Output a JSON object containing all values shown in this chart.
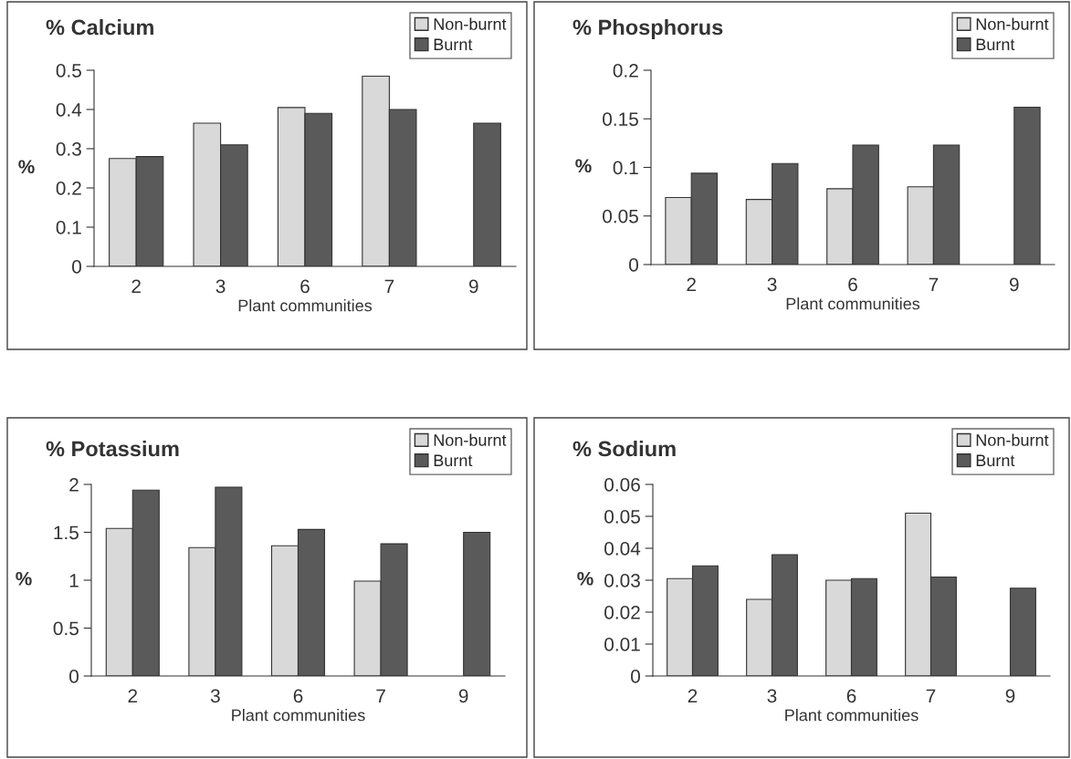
{
  "chart_data": [
    {
      "type": "bar",
      "title": "% Calcium",
      "xlabel": "Plant communities",
      "ylabel": "%",
      "categories": [
        "2",
        "3",
        "6",
        "7",
        "9"
      ],
      "series": [
        {
          "name": "Non-burnt",
          "color": "#d9d9d9",
          "values": [
            0.275,
            0.365,
            0.405,
            0.485,
            null
          ]
        },
        {
          "name": "Burnt",
          "color": "#5a5a5a",
          "values": [
            0.28,
            0.31,
            0.39,
            0.4,
            0.365
          ]
        }
      ],
      "ylim": [
        0,
        0.5
      ],
      "yticks": [
        0,
        0.1,
        0.2,
        0.3,
        0.4,
        0.5
      ],
      "grid": false,
      "legend": "top right"
    },
    {
      "type": "bar",
      "title": "% Phosphorus",
      "xlabel": "Plant communities",
      "ylabel": "%",
      "categories": [
        "2",
        "3",
        "6",
        "7",
        "9"
      ],
      "series": [
        {
          "name": "Non-burnt",
          "color": "#d9d9d9",
          "values": [
            0.069,
            0.067,
            0.078,
            0.08,
            null
          ]
        },
        {
          "name": "Burnt",
          "color": "#5a5a5a",
          "values": [
            0.094,
            0.104,
            0.123,
            0.123,
            0.162
          ]
        }
      ],
      "ylim": [
        0,
        0.2
      ],
      "yticks": [
        0,
        0.05,
        0.1,
        0.15,
        0.2
      ],
      "grid": false,
      "legend": "top right"
    },
    {
      "type": "bar",
      "title": "% Potassium",
      "xlabel": "Plant communities",
      "ylabel": "%",
      "categories": [
        "2",
        "3",
        "6",
        "7",
        "9"
      ],
      "series": [
        {
          "name": "Non-burnt",
          "color": "#d9d9d9",
          "values": [
            1.54,
            1.34,
            1.36,
            0.99,
            null
          ]
        },
        {
          "name": "Burnt",
          "color": "#5a5a5a",
          "values": [
            1.94,
            1.97,
            1.53,
            1.38,
            1.5
          ]
        }
      ],
      "ylim": [
        0,
        2
      ],
      "yticks": [
        0,
        0.5,
        1,
        1.5,
        2
      ],
      "grid": false,
      "legend": "top right"
    },
    {
      "type": "bar",
      "title": "% Sodium",
      "xlabel": "Plant communities",
      "ylabel": "%",
      "categories": [
        "2",
        "3",
        "6",
        "7",
        "9"
      ],
      "series": [
        {
          "name": "Non-burnt",
          "color": "#d9d9d9",
          "values": [
            0.0305,
            0.024,
            0.03,
            0.051,
            null
          ]
        },
        {
          "name": "Burnt",
          "color": "#5a5a5a",
          "values": [
            0.0345,
            0.038,
            0.0305,
            0.031,
            0.0275
          ]
        }
      ],
      "ylim": [
        0,
        0.06
      ],
      "yticks": [
        0,
        0.01,
        0.02,
        0.03,
        0.04,
        0.05,
        0.06
      ],
      "grid": false,
      "legend": "top right"
    }
  ]
}
